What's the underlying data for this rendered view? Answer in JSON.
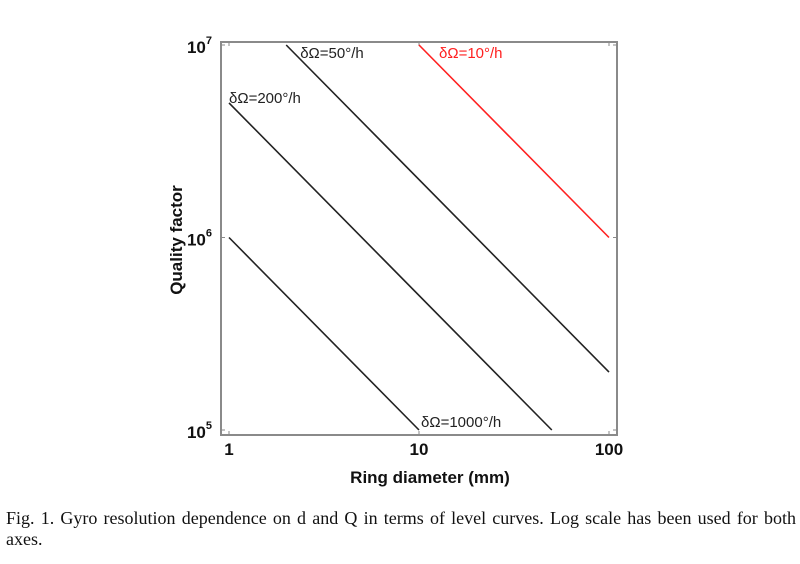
{
  "chart_data": {
    "type": "line",
    "title": "",
    "xlabel": "Ring diameter (mm)",
    "ylabel": "Quality factor",
    "xscale": "log",
    "yscale": "log",
    "xlim": [
      1,
      100
    ],
    "ylim": [
      100000,
      10000000
    ],
    "x_ticks": [
      {
        "value": 1,
        "label": "1"
      },
      {
        "value": 10,
        "label": "10"
      },
      {
        "value": 100,
        "label": "100"
      }
    ],
    "y_ticks": [
      {
        "value": 100000,
        "base": "10",
        "exp": "5"
      },
      {
        "value": 1000000,
        "base": "10",
        "exp": "6"
      },
      {
        "value": 10000000,
        "base": "10",
        "exp": "7"
      }
    ],
    "grid": false,
    "legend": "none (inline curve labels)",
    "series": [
      {
        "name": "δΩ=1000°/h",
        "color": "#222222",
        "x": [
          1,
          10
        ],
        "y": [
          1000000,
          100000
        ]
      },
      {
        "name": "δΩ=200°/h",
        "color": "#222222",
        "x": [
          1,
          50
        ],
        "y": [
          5000000,
          100000
        ]
      },
      {
        "name": "δΩ=50°/h",
        "color": "#222222",
        "x": [
          2,
          100
        ],
        "y": [
          10000000,
          200000
        ]
      },
      {
        "name": "δΩ=10°/h",
        "color": "#ff2020",
        "x": [
          10,
          100
        ],
        "y": [
          10000000,
          1000000
        ]
      }
    ]
  },
  "caption": "Fig. 1. Gyro resolution dependence on d and Q in terms of level curves. Log scale has been used for both axes."
}
